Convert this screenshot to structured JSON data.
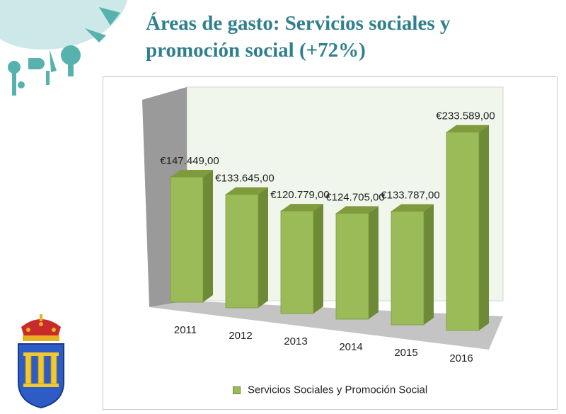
{
  "slide": {
    "title_line1": "Áreas de gasto: Servicios sociales y",
    "title_line2": "promoción social (+72%)"
  },
  "chart_data": {
    "type": "bar",
    "categories": [
      "2011",
      "2012",
      "2013",
      "2014",
      "2015",
      "2016"
    ],
    "series": [
      {
        "name": "Servicios Sociales y Promoción Social",
        "values": [
          147449,
          133645,
          120779,
          124705,
          133787,
          233589
        ],
        "labels": [
          "€147.449,00",
          "€133.645,00",
          "€120.779,00",
          "€124.705,00",
          "€133.787,00",
          "€233.589,00"
        ]
      }
    ],
    "ylim": [
      0,
      250000
    ],
    "legend_position": "bottom",
    "grid": false,
    "colors": {
      "bar_front": "#9bbb59",
      "bar_side": "#6f8a36",
      "bar_top": "#7f9b3e",
      "back_wall": "#f1f6ec",
      "side_wall": "#9a9a9a",
      "floor": "#c4c4c4"
    }
  }
}
